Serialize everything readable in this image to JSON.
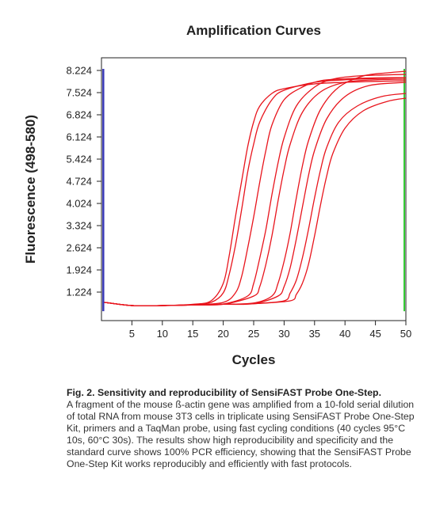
{
  "chart_data": {
    "type": "line",
    "title": "Amplification Curves",
    "xlabel": "Cycles",
    "ylabel": "Fluorescence (498-580)",
    "xlim": [
      0,
      50
    ],
    "ylim": [
      0.324,
      8.624
    ],
    "xticks": [
      "5",
      "10",
      "15",
      "20",
      "25",
      "30",
      "35",
      "40",
      "45",
      "50"
    ],
    "yticks": [
      "1.224",
      "1.924",
      "2.624",
      "3.324",
      "4.024",
      "4.724",
      "5.424",
      "6.124",
      "6.824",
      "7.524",
      "8.224"
    ],
    "grid": false,
    "legend": "none",
    "series_color": "#e8141c",
    "start_marker": {
      "x": 0.3,
      "color": "#3a3ab8"
    },
    "end_marker": {
      "x": 50,
      "color": "#33cc33"
    },
    "curve_model": {
      "baseline": 0.82,
      "midpoints_cycle": [
        22.5,
        23.2,
        25.6,
        27.6,
        28.5,
        31.5,
        32.5,
        34.5,
        35.3
      ],
      "plateaus": [
        7.9,
        8.0,
        8.0,
        8.1,
        7.95,
        8.2,
        7.85,
        7.5,
        7.35
      ],
      "slope_cycles": 1.5
    },
    "series": [
      {
        "values": [
          [
            0.5,
            0.9
          ],
          [
            5,
            0.8
          ],
          [
            10,
            0.8
          ],
          [
            15,
            0.84
          ],
          [
            18,
            0.95
          ],
          [
            20,
            1.5
          ],
          [
            21,
            2.4
          ],
          [
            22,
            3.6
          ],
          [
            23,
            4.7
          ],
          [
            24,
            5.8
          ],
          [
            25,
            6.6
          ],
          [
            26,
            7.1
          ],
          [
            28,
            7.5
          ],
          [
            30,
            7.65
          ],
          [
            35,
            7.8
          ],
          [
            40,
            7.85
          ],
          [
            45,
            7.88
          ],
          [
            50,
            7.9
          ]
        ]
      },
      {
        "values": [
          [
            0.5,
            0.9
          ],
          [
            5,
            0.8
          ],
          [
            10,
            0.8
          ],
          [
            15,
            0.83
          ],
          [
            18,
            0.9
          ],
          [
            20,
            1.2
          ],
          [
            21,
            1.8
          ],
          [
            22,
            2.7
          ],
          [
            23,
            3.8
          ],
          [
            24,
            5.0
          ],
          [
            25,
            5.9
          ],
          [
            26,
            6.6
          ],
          [
            28,
            7.3
          ],
          [
            30,
            7.6
          ],
          [
            35,
            7.85
          ],
          [
            40,
            7.93
          ],
          [
            45,
            7.97
          ],
          [
            50,
            8.0
          ]
        ]
      },
      {
        "values": [
          [
            0.5,
            0.9
          ],
          [
            5,
            0.8
          ],
          [
            10,
            0.8
          ],
          [
            15,
            0.82
          ],
          [
            20,
            0.9
          ],
          [
            22,
            1.2
          ],
          [
            23,
            1.7
          ],
          [
            24,
            2.6
          ],
          [
            25,
            3.6
          ],
          [
            26,
            4.7
          ],
          [
            27,
            5.7
          ],
          [
            28,
            6.5
          ],
          [
            30,
            7.3
          ],
          [
            33,
            7.7
          ],
          [
            36,
            7.9
          ],
          [
            40,
            7.96
          ],
          [
            45,
            7.99
          ],
          [
            50,
            8.0
          ]
        ]
      },
      {
        "values": [
          [
            0.5,
            0.9
          ],
          [
            5,
            0.8
          ],
          [
            10,
            0.8
          ],
          [
            15,
            0.82
          ],
          [
            20,
            0.85
          ],
          [
            24,
            1.1
          ],
          [
            25,
            1.5
          ],
          [
            26,
            2.3
          ],
          [
            27,
            3.2
          ],
          [
            28,
            4.3
          ],
          [
            29,
            5.3
          ],
          [
            30,
            6.1
          ],
          [
            32,
            7.1
          ],
          [
            35,
            7.7
          ],
          [
            38,
            7.95
          ],
          [
            42,
            8.05
          ],
          [
            46,
            8.08
          ],
          [
            50,
            8.1
          ]
        ]
      },
      {
        "values": [
          [
            0.5,
            0.9
          ],
          [
            5,
            0.8
          ],
          [
            10,
            0.8
          ],
          [
            15,
            0.82
          ],
          [
            20,
            0.84
          ],
          [
            25,
            1.1
          ],
          [
            26,
            1.4
          ],
          [
            27,
            2.1
          ],
          [
            28,
            3.0
          ],
          [
            29,
            4.1
          ],
          [
            30,
            5.1
          ],
          [
            31,
            5.9
          ],
          [
            33,
            6.9
          ],
          [
            36,
            7.55
          ],
          [
            40,
            7.85
          ],
          [
            45,
            7.93
          ],
          [
            50,
            7.95
          ]
        ]
      },
      {
        "values": [
          [
            0.5,
            0.9
          ],
          [
            5,
            0.8
          ],
          [
            10,
            0.8
          ],
          [
            15,
            0.82
          ],
          [
            20,
            0.84
          ],
          [
            25,
            0.88
          ],
          [
            28,
            1.1
          ],
          [
            29,
            1.5
          ],
          [
            30,
            2.2
          ],
          [
            31,
            3.1
          ],
          [
            32,
            4.2
          ],
          [
            33,
            5.2
          ],
          [
            34,
            6.0
          ],
          [
            36,
            7.0
          ],
          [
            39,
            7.7
          ],
          [
            43,
            8.05
          ],
          [
            47,
            8.15
          ],
          [
            50,
            8.2
          ]
        ]
      },
      {
        "values": [
          [
            0.5,
            0.9
          ],
          [
            5,
            0.8
          ],
          [
            10,
            0.8
          ],
          [
            15,
            0.82
          ],
          [
            20,
            0.84
          ],
          [
            25,
            0.86
          ],
          [
            29,
            1.1
          ],
          [
            30,
            1.4
          ],
          [
            31,
            2.0
          ],
          [
            32,
            2.9
          ],
          [
            33,
            3.9
          ],
          [
            34,
            4.9
          ],
          [
            35,
            5.7
          ],
          [
            37,
            6.7
          ],
          [
            40,
            7.4
          ],
          [
            44,
            7.75
          ],
          [
            50,
            7.85
          ]
        ]
      },
      {
        "values": [
          [
            0.5,
            0.9
          ],
          [
            5,
            0.8
          ],
          [
            10,
            0.8
          ],
          [
            15,
            0.82
          ],
          [
            20,
            0.84
          ],
          [
            25,
            0.86
          ],
          [
            30,
            0.95
          ],
          [
            31,
            1.2
          ],
          [
            32,
            1.6
          ],
          [
            33,
            2.3
          ],
          [
            34,
            3.2
          ],
          [
            35,
            4.2
          ],
          [
            36,
            5.1
          ],
          [
            37,
            5.8
          ],
          [
            39,
            6.6
          ],
          [
            42,
            7.1
          ],
          [
            46,
            7.4
          ],
          [
            50,
            7.5
          ]
        ]
      },
      {
        "values": [
          [
            0.5,
            0.9
          ],
          [
            5,
            0.8
          ],
          [
            10,
            0.8
          ],
          [
            15,
            0.82
          ],
          [
            20,
            0.84
          ],
          [
            25,
            0.86
          ],
          [
            31,
            0.95
          ],
          [
            32,
            1.15
          ],
          [
            33,
            1.5
          ],
          [
            34,
            2.1
          ],
          [
            35,
            3.0
          ],
          [
            36,
            4.0
          ],
          [
            37,
            4.9
          ],
          [
            38,
            5.6
          ],
          [
            40,
            6.4
          ],
          [
            43,
            6.95
          ],
          [
            47,
            7.25
          ],
          [
            50,
            7.35
          ]
        ]
      }
    ]
  },
  "caption": {
    "title": "Fig. 2. Sensitivity and reproducibility of SensiFAST Probe One-Step.",
    "body": "A fragment of the mouse ß-actin gene was amplified from a 10-fold serial dilution of total RNA from mouse 3T3 cells in triplicate using SensiFAST Probe One-Step Kit, primers and a TaqMan probe, using fast cycling conditions (40 cycles 95°C 10s, 60°C 30s). The results show high reproducibility and specificity and the standard curve shows 100% PCR efficiency, showing that the SensiFAST Probe One-Step Kit works reproducibly and efficiently with fast protocols."
  }
}
